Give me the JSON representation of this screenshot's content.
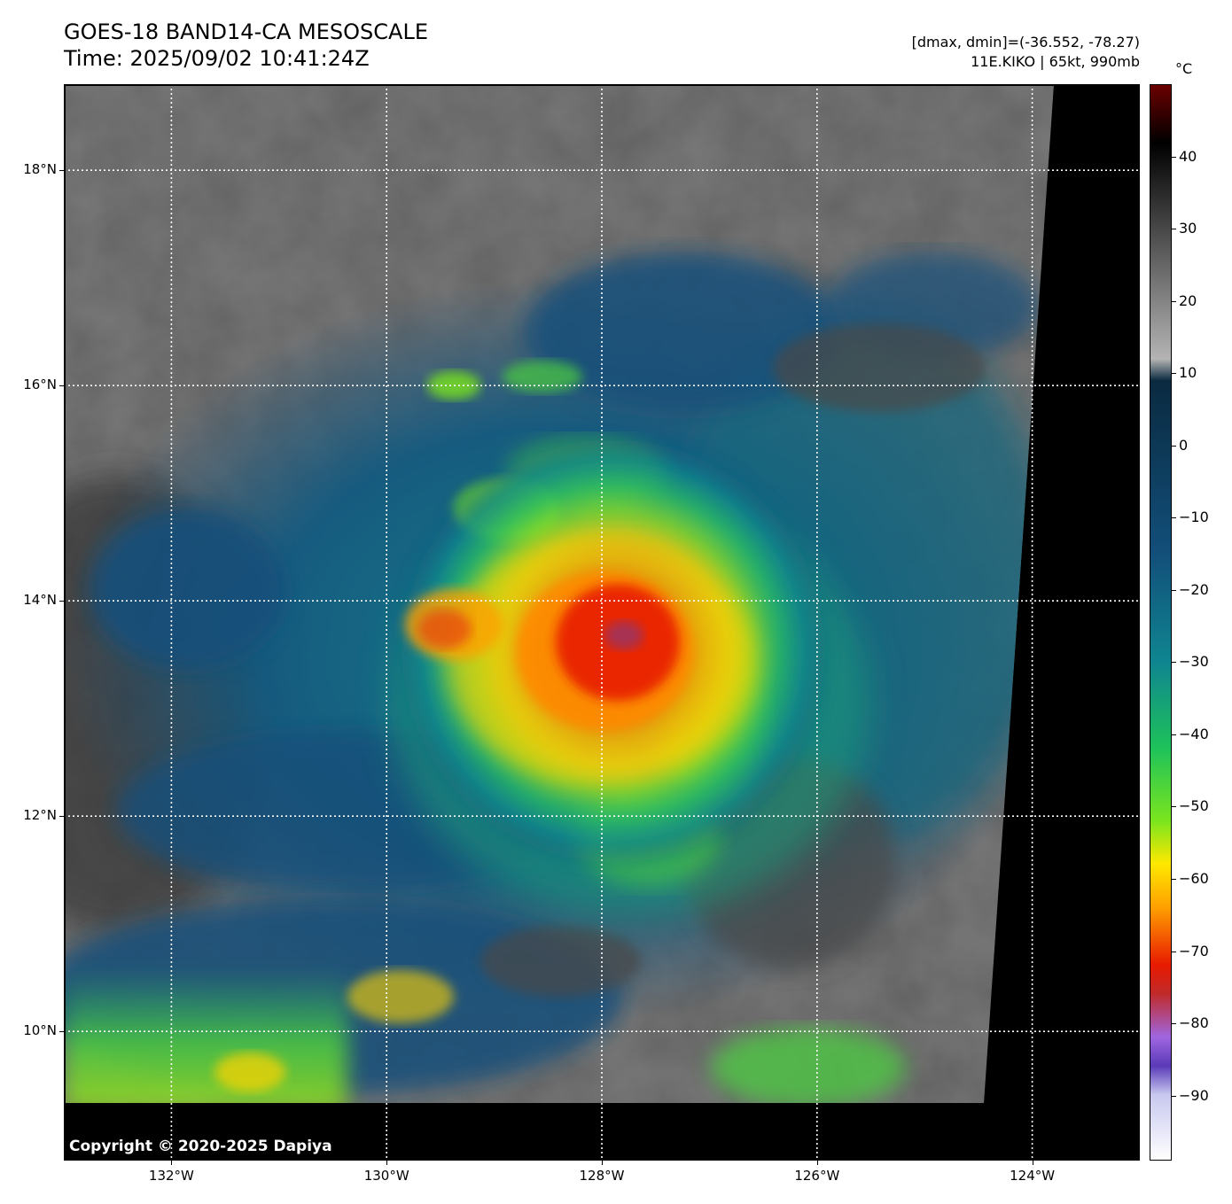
{
  "header": {
    "title_line1": "GOES-18 BAND14-CA MESOSCALE",
    "title_line2": "Time: 2025/09/02 10:41:24Z",
    "info_line1": "[dmax, dmin]=(-36.552, -78.27)",
    "info_line2": "11E.KIKO | 65kt, 990mb"
  },
  "map": {
    "lon_range": [
      -133.0,
      -123.0
    ],
    "lat_range": [
      8.8,
      18.8
    ],
    "lat_ticks": [
      {
        "value": 18,
        "label": "18°N"
      },
      {
        "value": 16,
        "label": "16°N"
      },
      {
        "value": 14,
        "label": "14°N"
      },
      {
        "value": 12,
        "label": "12°N"
      },
      {
        "value": 10,
        "label": "10°N"
      }
    ],
    "lon_ticks": [
      {
        "value": -132,
        "label": "132°W"
      },
      {
        "value": -130,
        "label": "130°W"
      },
      {
        "value": -128,
        "label": "128°W"
      },
      {
        "value": -126,
        "label": "126°W"
      },
      {
        "value": -124,
        "label": "124°W"
      }
    ],
    "storm_center": {
      "lon": -127.75,
      "lat": 13.6
    },
    "grid": "dotted white",
    "copyright": "Copyright © 2020-2025 Dapiya"
  },
  "colorbar": {
    "unit": "°C",
    "range": [
      -99,
      50
    ],
    "ticks": [
      {
        "value": 40,
        "label": "40"
      },
      {
        "value": 30,
        "label": "30"
      },
      {
        "value": 20,
        "label": "20"
      },
      {
        "value": 10,
        "label": "10"
      },
      {
        "value": 0,
        "label": "0"
      },
      {
        "value": -10,
        "label": "−10"
      },
      {
        "value": -20,
        "label": "−20"
      },
      {
        "value": -30,
        "label": "−30"
      },
      {
        "value": -40,
        "label": "−40"
      },
      {
        "value": -50,
        "label": "−50"
      },
      {
        "value": -60,
        "label": "−60"
      },
      {
        "value": -70,
        "label": "−70"
      },
      {
        "value": -80,
        "label": "−80"
      },
      {
        "value": -90,
        "label": "−90"
      }
    ],
    "stops": [
      {
        "value": 50,
        "color": "#6b0000"
      },
      {
        "value": 42,
        "color": "#000000"
      },
      {
        "value": 12,
        "color": "#b4b4b4"
      },
      {
        "value": 9,
        "color": "#0a2a40"
      },
      {
        "value": -15,
        "color": "#124f7a"
      },
      {
        "value": -30,
        "color": "#0f8590"
      },
      {
        "value": -42,
        "color": "#1ec25a"
      },
      {
        "value": -52,
        "color": "#7ae51e"
      },
      {
        "value": -58,
        "color": "#ffe800"
      },
      {
        "value": -64,
        "color": "#ffa000"
      },
      {
        "value": -72,
        "color": "#e81a00"
      },
      {
        "value": -76,
        "color": "#c02a2a"
      },
      {
        "value": -82,
        "color": "#a066e0"
      },
      {
        "value": -86,
        "color": "#5a3ab8"
      },
      {
        "value": -90,
        "color": "#c8c8f0"
      },
      {
        "value": -99,
        "color": "#ffffff"
      }
    ]
  }
}
